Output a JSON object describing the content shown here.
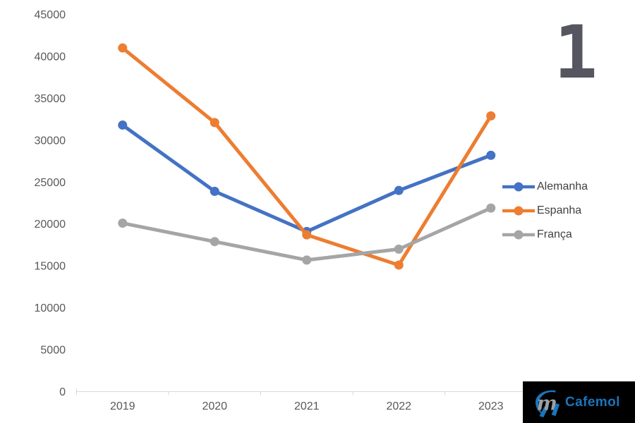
{
  "badge": {
    "value": "1",
    "color": "#555660"
  },
  "logo": {
    "text": "Cafemol",
    "background": "#000000",
    "text_color": "#1B75BC",
    "icon_blue": "#1B75BC",
    "icon_gray": "#9EA0A3"
  },
  "chart_data": {
    "type": "line",
    "title": "",
    "xlabel": "",
    "ylabel": "",
    "categories": [
      "2019",
      "2020",
      "2021",
      "2022",
      "2023"
    ],
    "series": [
      {
        "name": "Alemanha",
        "color": "#4472C4",
        "values": [
          31800,
          23900,
          19100,
          24000,
          28200
        ]
      },
      {
        "name": "Espanha",
        "color": "#ED7D31",
        "values": [
          41000,
          32100,
          18700,
          15100,
          32900
        ]
      },
      {
        "name": "França",
        "color": "#A5A5A5",
        "values": [
          20100,
          17900,
          15700,
          17000,
          21900
        ]
      }
    ],
    "ylim": [
      0,
      45000
    ],
    "ytick_step": 5000,
    "ytick_labels": [
      "0",
      "5000",
      "10000",
      "15000",
      "20000",
      "25000",
      "30000",
      "35000",
      "40000",
      "45000"
    ],
    "grid": false,
    "legend_position": "right",
    "marker": "circle",
    "axis_label_color": "#595959",
    "axis_line_color": "#D9D9D9",
    "legend_text_color": "#404040"
  }
}
